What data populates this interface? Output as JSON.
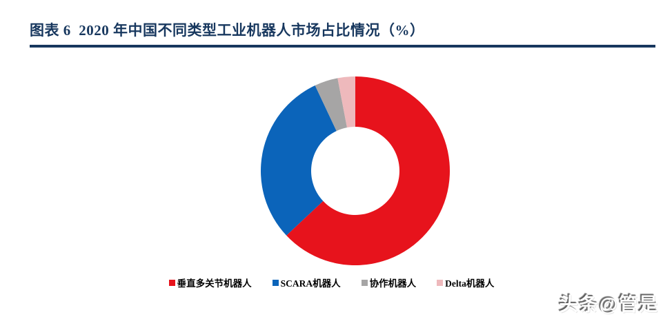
{
  "header": {
    "title": "图表 6  2020 年中国不同类型工业机器人市场占比情况（%）",
    "title_color": "#17375e",
    "rule_color": "#17375e"
  },
  "chart_data": {
    "type": "pie",
    "variant": "donut",
    "title": "2020 年中国不同类型工业机器人市场占比情况（%）",
    "unit": "%",
    "categories": [
      "垂直多关节机器人",
      "SCARA机器人",
      "协作机器人",
      "Delta机器人"
    ],
    "values": [
      63,
      30,
      4,
      3
    ],
    "colors": [
      "#e7131c",
      "#0b64ba",
      "#a6a5a5",
      "#eeb9bc"
    ],
    "start_angle_deg": 0,
    "direction": "clockwise",
    "inner_radius_ratio": 0.47,
    "legend_position": "bottom",
    "data_labels": false,
    "grid": false
  },
  "watermark": {
    "text": "头条@管是"
  }
}
